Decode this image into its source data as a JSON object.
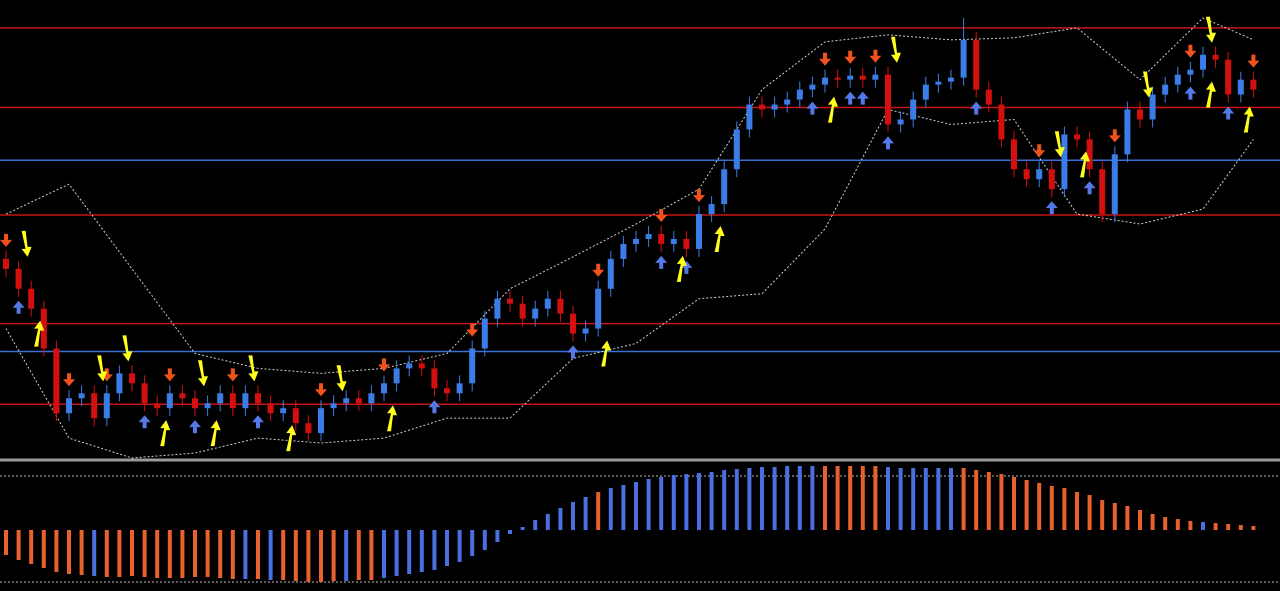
{
  "chart_data": {
    "type": "candlestick",
    "ylim": [
      0,
      460
    ],
    "up_color": "#3b7de6",
    "down_color": "#d40f0f",
    "ohlc": [
      [
        200,
        208,
        182,
        190
      ],
      [
        190,
        198,
        162,
        170
      ],
      [
        170,
        178,
        142,
        150
      ],
      [
        150,
        158,
        102,
        110
      ],
      [
        110,
        118,
        37,
        45
      ],
      [
        45,
        68,
        37,
        60
      ],
      [
        60,
        73,
        52,
        65
      ],
      [
        65,
        73,
        32,
        40
      ],
      [
        40,
        73,
        32,
        65
      ],
      [
        65,
        93,
        57,
        85
      ],
      [
        85,
        93,
        67,
        75
      ],
      [
        75,
        83,
        47,
        55
      ],
      [
        55,
        63,
        42,
        50
      ],
      [
        50,
        73,
        42,
        65
      ],
      [
        65,
        73,
        52,
        60
      ],
      [
        60,
        68,
        42,
        50
      ],
      [
        50,
        63,
        42,
        55
      ],
      [
        55,
        73,
        47,
        65
      ],
      [
        65,
        73,
        42,
        50
      ],
      [
        50,
        73,
        42,
        65
      ],
      [
        65,
        73,
        47,
        55
      ],
      [
        55,
        63,
        37,
        45
      ],
      [
        45,
        58,
        37,
        50
      ],
      [
        50,
        58,
        27,
        35
      ],
      [
        35,
        43,
        17,
        25
      ],
      [
        25,
        58,
        17,
        50
      ],
      [
        50,
        63,
        42,
        55
      ],
      [
        55,
        68,
        47,
        60
      ],
      [
        60,
        68,
        47,
        55
      ],
      [
        55,
        73,
        47,
        65
      ],
      [
        65,
        83,
        57,
        75
      ],
      [
        75,
        98,
        67,
        90
      ],
      [
        90,
        103,
        82,
        95
      ],
      [
        95,
        103,
        82,
        90
      ],
      [
        90,
        98,
        62,
        70
      ],
      [
        70,
        78,
        57,
        65
      ],
      [
        65,
        83,
        57,
        75
      ],
      [
        75,
        118,
        67,
        110
      ],
      [
        110,
        148,
        102,
        140
      ],
      [
        140,
        168,
        132,
        160
      ],
      [
        160,
        168,
        147,
        155
      ],
      [
        155,
        163,
        132,
        140
      ],
      [
        140,
        158,
        132,
        150
      ],
      [
        150,
        168,
        142,
        160
      ],
      [
        160,
        168,
        137,
        145
      ],
      [
        145,
        153,
        117,
        125
      ],
      [
        125,
        138,
        117,
        130
      ],
      [
        130,
        178,
        122,
        170
      ],
      [
        170,
        208,
        162,
        200
      ],
      [
        200,
        223,
        192,
        215
      ],
      [
        215,
        228,
        207,
        220
      ],
      [
        220,
        233,
        212,
        225
      ],
      [
        225,
        233,
        207,
        215
      ],
      [
        215,
        228,
        207,
        220
      ],
      [
        220,
        228,
        202,
        210
      ],
      [
        210,
        253,
        202,
        245
      ],
      [
        245,
        263,
        237,
        255
      ],
      [
        255,
        298,
        247,
        290
      ],
      [
        290,
        338,
        282,
        330
      ],
      [
        330,
        363,
        322,
        355
      ],
      [
        355,
        363,
        342,
        350
      ],
      [
        350,
        363,
        342,
        355
      ],
      [
        355,
        368,
        347,
        360
      ],
      [
        360,
        378,
        352,
        370
      ],
      [
        370,
        383,
        362,
        375
      ],
      [
        375,
        390,
        367,
        382
      ],
      [
        382,
        390,
        372,
        380
      ],
      [
        380,
        392,
        372,
        384
      ],
      [
        384,
        392,
        372,
        380
      ],
      [
        380,
        393,
        372,
        385
      ],
      [
        385,
        393,
        327,
        335
      ],
      [
        335,
        348,
        327,
        340
      ],
      [
        340,
        368,
        332,
        360
      ],
      [
        360,
        383,
        352,
        375
      ],
      [
        375,
        386,
        367,
        378
      ],
      [
        378,
        390,
        370,
        382
      ],
      [
        382,
        442,
        374,
        420
      ],
      [
        420,
        428,
        362,
        370
      ],
      [
        370,
        378,
        347,
        355
      ],
      [
        355,
        363,
        312,
        320
      ],
      [
        320,
        328,
        282,
        290
      ],
      [
        290,
        298,
        272,
        280
      ],
      [
        280,
        298,
        272,
        290
      ],
      [
        290,
        298,
        262,
        270
      ],
      [
        270,
        333,
        262,
        325
      ],
      [
        325,
        333,
        312,
        320
      ],
      [
        320,
        328,
        282,
        290
      ],
      [
        290,
        298,
        237,
        245
      ],
      [
        245,
        313,
        237,
        305
      ],
      [
        305,
        358,
        297,
        350
      ],
      [
        350,
        358,
        332,
        340
      ],
      [
        340,
        373,
        332,
        365
      ],
      [
        365,
        383,
        357,
        375
      ],
      [
        375,
        393,
        367,
        385
      ],
      [
        385,
        398,
        377,
        390
      ],
      [
        390,
        413,
        382,
        405
      ],
      [
        405,
        413,
        392,
        400
      ],
      [
        400,
        408,
        357,
        365
      ],
      [
        365,
        388,
        357,
        380
      ],
      [
        380,
        388,
        362,
        370
      ]
    ],
    "red_levels": [
      432,
      352,
      244,
      135,
      54
    ],
    "blue_levels": [
      299,
      107
    ],
    "level_colors": [
      "#c81414",
      "#3a6fd8"
    ],
    "bands": {
      "x": [
        0,
        5,
        10,
        15,
        20,
        25,
        30,
        35,
        40,
        45,
        50,
        55,
        60,
        65,
        70,
        75,
        80,
        85,
        90,
        95,
        99
      ],
      "upper": [
        245,
        275,
        190,
        105,
        90,
        85,
        90,
        105,
        170,
        202,
        235,
        270,
        370,
        418,
        425,
        420,
        422,
        432,
        380,
        442,
        420
      ],
      "lower": [
        130,
        20,
        0,
        5,
        20,
        15,
        20,
        40,
        40,
        100,
        115,
        160,
        165,
        230,
        350,
        335,
        340,
        245,
        235,
        250,
        320
      ],
      "color": "#cfcfcf"
    },
    "down_arrows": {
      "x": [
        0,
        5,
        8,
        13,
        18,
        25,
        30,
        37,
        47,
        52,
        55,
        65,
        67,
        69,
        82,
        88,
        94,
        99
      ],
      "color": "#f0521e"
    },
    "up_arrows": {
      "x": [
        1,
        11,
        15,
        20,
        34,
        45,
        52,
        54,
        64,
        67,
        68,
        70,
        77,
        83,
        86,
        94,
        97
      ],
      "color": "#5578e8"
    },
    "yellow_down": {
      "x": [
        1,
        7,
        9,
        15,
        19,
        26,
        70,
        83,
        90,
        95
      ],
      "color": "#ffff1a"
    },
    "yellow_up": {
      "x": [
        2,
        12,
        16,
        22,
        30,
        47,
        53,
        56,
        65,
        85,
        95,
        98
      ],
      "color": "#ffff1a"
    },
    "histogram": {
      "ylim": [
        -61,
        68
      ],
      "levels": [
        54,
        -52
      ],
      "values": [
        -25,
        -30,
        -34,
        -38,
        -42,
        -44,
        -45,
        -46,
        -47,
        -47,
        -46,
        -47,
        -48,
        -48,
        -48,
        -47,
        -47,
        -48,
        -49,
        -49,
        -49,
        -50,
        -50,
        -51,
        -52,
        -52,
        -51,
        -51,
        -50,
        -50,
        -48,
        -46,
        -44,
        -42,
        -40,
        -36,
        -32,
        -26,
        -20,
        -12,
        -4,
        3,
        10,
        16,
        22,
        28,
        33,
        38,
        42,
        45,
        48,
        51,
        53,
        55,
        56,
        57,
        58,
        60,
        61,
        62,
        63,
        63,
        64,
        64,
        64,
        64,
        64,
        64,
        64,
        64,
        63,
        62,
        62,
        62,
        62,
        62,
        62,
        60,
        58,
        56,
        53,
        50,
        47,
        44,
        42,
        38,
        35,
        30,
        27,
        24,
        20,
        16,
        13,
        11,
        9,
        8,
        7,
        6,
        5,
        4
      ],
      "colors": [
        "#e8602c",
        "#e8602c",
        "#e8602c",
        "#e8602c",
        "#e8602c",
        "#e8602c",
        "#e8602c",
        "#4a6fe0",
        "#e8602c",
        "#e8602c",
        "#e8602c",
        "#e8602c",
        "#e8602c",
        "#e8602c",
        "#e8602c",
        "#e8602c",
        "#e8602c",
        "#e8602c",
        "#e8602c",
        "#4a6fe0",
        "#e8602c",
        "#4a6fe0",
        "#e8602c",
        "#e8602c",
        "#e8602c",
        "#e8602c",
        "#e8602c",
        "#4a6fe0",
        "#e8602c",
        "#e8602c",
        "#4a6fe0",
        "#4a6fe0",
        "#4a6fe0",
        "#4a6fe0",
        "#4a6fe0",
        "#4a6fe0",
        "#4a6fe0",
        "#4a6fe0",
        "#4a6fe0",
        "#4a6fe0",
        "#4a6fe0",
        "#4a6fe0",
        "#4a6fe0",
        "#4a6fe0",
        "#4a6fe0",
        "#4a6fe0",
        "#4a6fe0",
        "#e8602c",
        "#4a6fe0",
        "#4a6fe0",
        "#4a6fe0",
        "#4a6fe0",
        "#4a6fe0",
        "#4a6fe0",
        "#4a6fe0",
        "#4a6fe0",
        "#4a6fe0",
        "#4a6fe0",
        "#4a6fe0",
        "#4a6fe0",
        "#4a6fe0",
        "#4a6fe0",
        "#4a6fe0",
        "#4a6fe0",
        "#4a6fe0",
        "#e8602c",
        "#e8602c",
        "#e8602c",
        "#e8602c",
        "#e8602c",
        "#4a6fe0",
        "#4a6fe0",
        "#4a6fe0",
        "#4a6fe0",
        "#4a6fe0",
        "#4a6fe0",
        "#e8602c",
        "#e8602c",
        "#e8602c",
        "#e8602c",
        "#e8602c",
        "#e8602c",
        "#e8602c",
        "#e8602c",
        "#e8602c",
        "#e8602c",
        "#e8602c",
        "#e8602c",
        "#e8602c",
        "#e8602c",
        "#e8602c",
        "#e8602c",
        "#e8602c",
        "#e8602c",
        "#e8602c",
        "#4a6fe0",
        "#e8602c",
        "#e8602c",
        "#e8602c",
        "#e8602c"
      ]
    }
  }
}
